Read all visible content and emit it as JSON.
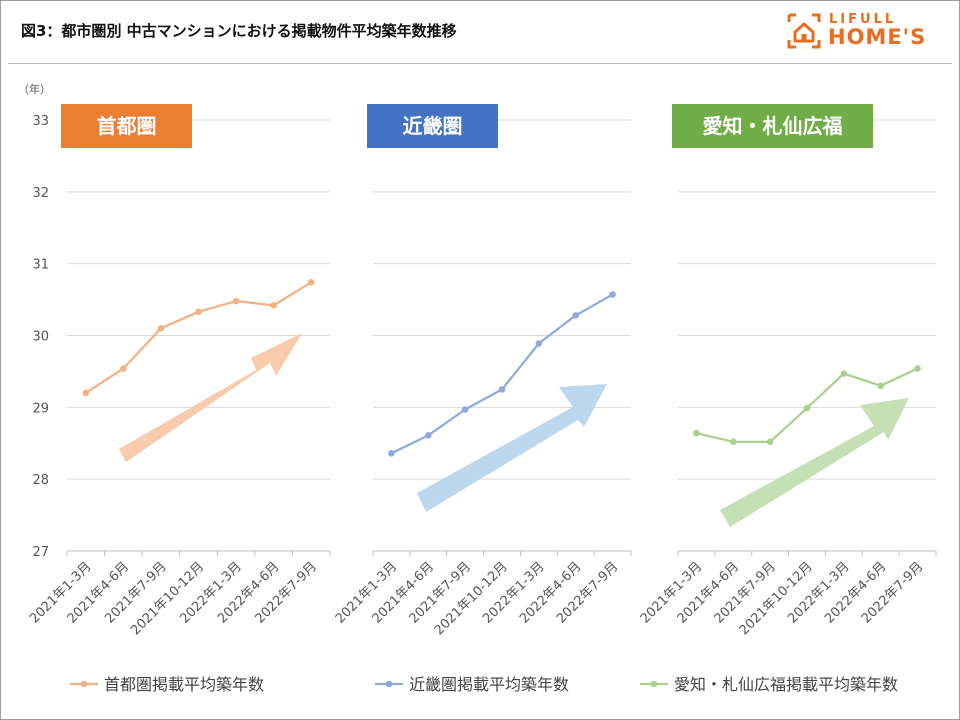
{
  "title": "図3：都市圏別 中古マンションにおける掲載物件平均築年数推移",
  "logo": {
    "line1": "LIFULL",
    "line2": "HOME'S",
    "color": "#ec6c1f"
  },
  "y_unit": "（年）",
  "chart_data": [
    {
      "type": "line",
      "label": "首都圏",
      "categories": [
        "2021年1-3月",
        "2021年4-6月",
        "2021年7-9月",
        "2021年10-12月",
        "2022年1-3月",
        "2022年4-6月",
        "2022年7-9月"
      ],
      "series": [
        {
          "name": "首都圏掲載平均築年数",
          "values": [
            29.2,
            29.54,
            30.1,
            30.33,
            30.48,
            30.42,
            30.74
          ]
        }
      ],
      "ylim": [
        27,
        33
      ],
      "yticks": [
        27,
        28,
        29,
        30,
        31,
        32,
        33
      ],
      "grid": true,
      "color": "#f4b183",
      "label_color": "#ed7d31",
      "arrow_color": "#f8cbad"
    },
    {
      "type": "line",
      "label": "近畿圏",
      "categories": [
        "2021年1-3月",
        "2021年4-6月",
        "2021年7-9月",
        "2021年10-12月",
        "2022年1-3月",
        "2022年4-6月",
        "2022年7-9月"
      ],
      "series": [
        {
          "name": "近畿圏掲載平均築年数",
          "values": [
            28.36,
            28.61,
            28.97,
            29.25,
            29.89,
            30.28,
            30.57
          ]
        }
      ],
      "ylim": [
        27,
        33
      ],
      "grid": true,
      "color": "#8faadc",
      "label_color": "#4472c4",
      "arrow_color": "#bdd7ee"
    },
    {
      "type": "line",
      "label": "愛知・札仙広福",
      "categories": [
        "2021年1-3月",
        "2021年4-6月",
        "2021年7-9月",
        "2021年10-12月",
        "2022年1-3月",
        "2022年4-6月",
        "2022年7-9月"
      ],
      "series": [
        {
          "name": "愛知・札仙広福掲載平均築年数",
          "values": [
            28.64,
            28.52,
            28.52,
            28.99,
            29.47,
            29.3,
            29.54
          ]
        }
      ],
      "ylim": [
        27,
        33
      ],
      "grid": true,
      "color": "#a9d18e",
      "label_color": "#70ad47",
      "arrow_color": "#c5e0b4"
    }
  ]
}
